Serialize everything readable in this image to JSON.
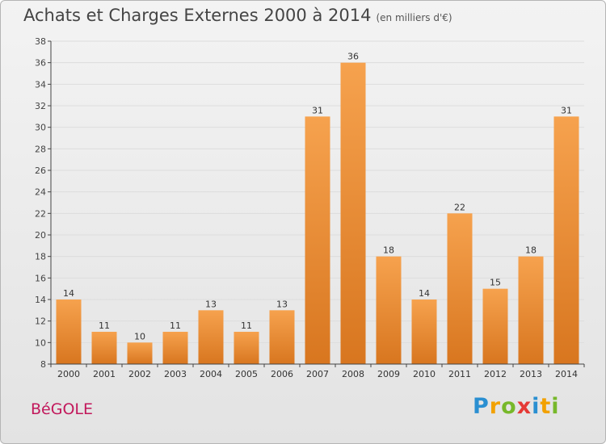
{
  "header": {
    "title": "Achats et Charges Externes 2000 à 2014",
    "subtitle": "(en milliers d'€)"
  },
  "footer": {
    "commune": "BéGOLE",
    "logo": [
      "P",
      "r",
      "o",
      "x",
      "i",
      "t",
      "i"
    ]
  },
  "colors": {
    "bar_top": "#f6a24e",
    "bar_bottom": "#d8761f",
    "axis": "#444444",
    "grid": "#dddddd"
  },
  "chart_data": {
    "type": "bar",
    "title": "Achats et Charges Externes 2000 à 2014",
    "subtitle": "(en milliers d'€)",
    "categories": [
      "2000",
      "2001",
      "2002",
      "2003",
      "2004",
      "2005",
      "2006",
      "2007",
      "2008",
      "2009",
      "2010",
      "2011",
      "2012",
      "2013",
      "2014"
    ],
    "values": [
      14,
      11,
      10,
      11,
      13,
      11,
      13,
      31,
      36,
      18,
      14,
      22,
      15,
      18,
      31
    ],
    "ylim": [
      8,
      38
    ],
    "yticks": [
      8,
      10,
      12,
      14,
      16,
      18,
      20,
      22,
      24,
      26,
      28,
      30,
      32,
      34,
      36,
      38
    ],
    "grid": true,
    "legend": "none"
  }
}
